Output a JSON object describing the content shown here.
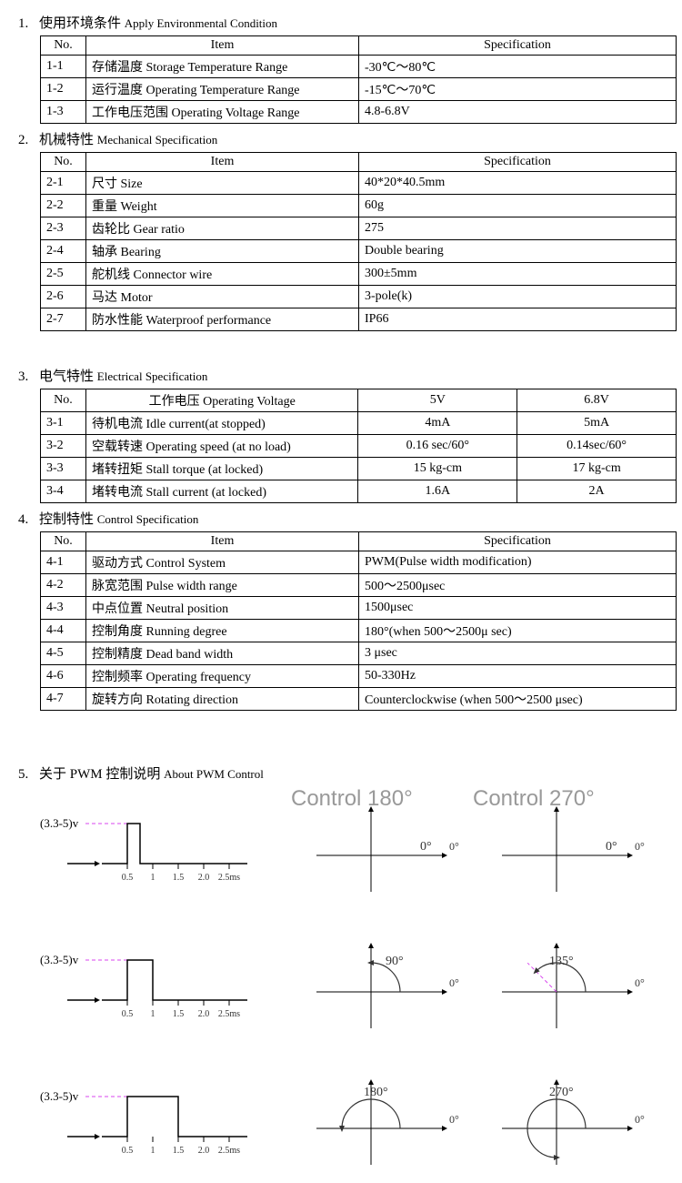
{
  "sections": {
    "s1": {
      "num": "1.",
      "title_cn": "使用环境条件",
      "title_en": "Apply Environmental Condition"
    },
    "s2": {
      "num": "2.",
      "title_cn": "机械特性",
      "title_en": "Mechanical Specification"
    },
    "s3": {
      "num": "3.",
      "title_cn": "电气特性",
      "title_en": "Electrical Specification"
    },
    "s4": {
      "num": "4.",
      "title_cn": "控制特性",
      "title_en": "Control Specification"
    },
    "s5": {
      "num": "5.",
      "title_cn": "关于 PWM 控制说明",
      "title_en": "About PWM Control"
    }
  },
  "headers": {
    "no": "No.",
    "item": "Item",
    "spec": "Specification",
    "voltage": "工作电压 Operating Voltage",
    "v5": "5V",
    "v68": "6.8V"
  },
  "table1": [
    {
      "no": "1-1",
      "item": "存储温度 Storage Temperature Range",
      "spec": "-30℃～80℃"
    },
    {
      "no": "1-2",
      "item": "运行温度 Operating Temperature Range",
      "spec": "-15℃～70℃"
    },
    {
      "no": "1-3",
      "item": "工作电压范围 Operating Voltage Range",
      "spec": "4.8-6.8V"
    }
  ],
  "table2": [
    {
      "no": "2-1",
      "item": "尺寸  Size",
      "spec": "40*20*40.5mm"
    },
    {
      "no": "2-2",
      "item": "重量  Weight",
      "spec": "60g"
    },
    {
      "no": "2-3",
      "item": "齿轮比  Gear ratio",
      "spec": "275"
    },
    {
      "no": "2-4",
      "item": "轴承  Bearing",
      "spec": "Double bearing"
    },
    {
      "no": "2-5",
      "item": "舵机线  Connector wire",
      "spec": "300±5mm"
    },
    {
      "no": "2-6",
      "item": "马达  Motor",
      "spec": "3-pole(k)"
    },
    {
      "no": "2-7",
      "item": "防水性能 Waterproof performance",
      "spec": "IP66"
    }
  ],
  "table3": [
    {
      "no": "3-1",
      "item": "待机电流  Idle current(at stopped)",
      "v1": "4mA",
      "v2": "5mA"
    },
    {
      "no": "3-2",
      "item": "空载转速 Operating speed (at no load)",
      "v1": "0.16 sec/60°",
      "v2": "0.14sec/60°"
    },
    {
      "no": "3-3",
      "item": "堵转扭矩 Stall torque (at locked)",
      "v1": "15 kg-cm",
      "v2": "17 kg-cm"
    },
    {
      "no": "3-4",
      "item": "堵转电流 Stall current (at locked)",
      "v1": "1.6A",
      "v2": "2A"
    }
  ],
  "table4": [
    {
      "no": "4-1",
      "item": "驱动方式 Control System",
      "spec": "PWM(Pulse width modification)"
    },
    {
      "no": "4-2",
      "item": "脉宽范围 Pulse width range",
      "spec": "500～2500μsec"
    },
    {
      "no": "4-3",
      "item": "中点位置 Neutral position",
      "spec": "1500μsec"
    },
    {
      "no": "4-4",
      "item": "控制角度 Running degree",
      "spec": "180°(when 500～2500μ sec)"
    },
    {
      "no": "4-5",
      "item": "控制精度  Dead band width",
      "spec": "3 μsec"
    },
    {
      "no": "4-6",
      "item": "控制频率 Operating   frequency",
      "spec": "50-330Hz"
    },
    {
      "no": "4-7",
      "item": "旋转方向  Rotating direction",
      "spec": "Counterclockwise (when 500～2500 μsec)"
    }
  ],
  "pwm": {
    "voltage_label": "(3.3-5)v",
    "ticks": [
      "0.5",
      "1",
      "1.5",
      "2.0",
      "2.5ms"
    ],
    "header180": "Control 180°",
    "header270": "Control 270°",
    "rows": [
      {
        "pulse_end_tick": 1,
        "angle180": "0°",
        "angle270": "0°",
        "arc180_deg": 0,
        "arc270_deg": 0
      },
      {
        "pulse_end_tick": 2,
        "angle180": "90°",
        "angle270": "135°",
        "arc180_deg": 90,
        "arc270_deg": 135
      },
      {
        "pulse_end_tick": 4,
        "angle180": "180°",
        "angle270": "270°",
        "arc180_deg": 180,
        "arc270_deg": 270
      }
    ],
    "colors": {
      "wave": "#000000",
      "dash": "#d946ef",
      "axis": "#000000",
      "arc": "#333333",
      "grey_text": "#999999"
    }
  }
}
